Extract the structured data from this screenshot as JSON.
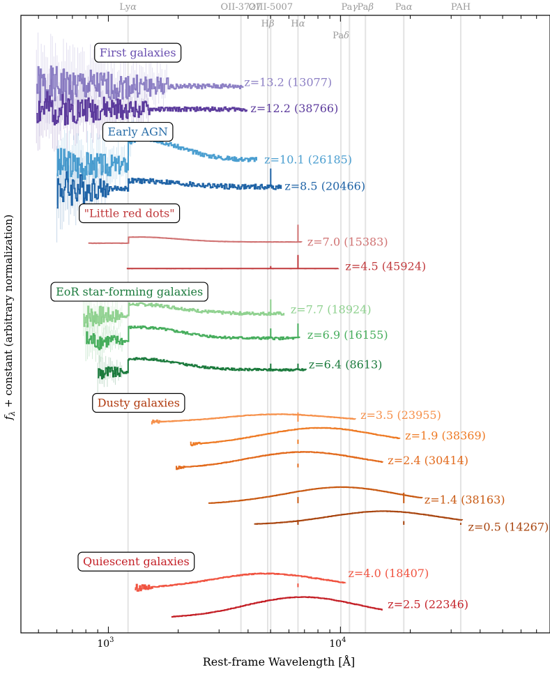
{
  "chart_data": {
    "type": "line",
    "title": "",
    "xlabel": "Rest-frame Wavelength [Å]",
    "ylabel": "fλ + constant (arbitrary normalization)",
    "xscale": "log",
    "xlim": [
      420,
      80000
    ],
    "ylim": [
      0,
      100
    ],
    "x_ticks": [
      {
        "value": 1000,
        "base": "10",
        "exp": "3"
      },
      {
        "value": 10000,
        "base": "10",
        "exp": "4"
      }
    ],
    "grid": false,
    "lines": [
      {
        "name": "Lyα",
        "base": "Ly",
        "greek": "α",
        "wavelength": 1216,
        "row": 0
      },
      {
        "name": "OII-3727",
        "base": "OII-3727",
        "greek": "",
        "wavelength": 3727,
        "row": 0
      },
      {
        "name": "OIII-5007",
        "base": "OIII-5007",
        "greek": "",
        "wavelength": 5007,
        "row": 0
      },
      {
        "name": "Paγ",
        "base": "Pa",
        "greek": "γ",
        "wavelength": 10938,
        "row": 0
      },
      {
        "name": "Paβ",
        "base": "Pa",
        "greek": "β",
        "wavelength": 12818,
        "row": 0
      },
      {
        "name": "Paα",
        "base": "Pa",
        "greek": "α",
        "wavelength": 18751,
        "row": 0
      },
      {
        "name": "PAH",
        "base": "PAH",
        "greek": "",
        "wavelength": 33000,
        "row": 0
      },
      {
        "name": "Hβ",
        "base": "H",
        "greek": "β",
        "wavelength": 4861,
        "row": 1
      },
      {
        "name": "Hα",
        "base": "H",
        "greek": "α",
        "wavelength": 6563,
        "row": 1
      },
      {
        "name": "Paδ",
        "base": "Pa",
        "greek": "δ",
        "wavelength": 10049,
        "row": 2
      }
    ],
    "groups": [
      {
        "label": "First galaxies",
        "color": "#6a4fb0",
        "x": 1250,
        "y": 94.0
      },
      {
        "label": "Early AGN",
        "color": "#2a6ea8",
        "x": 1250,
        "y": 81.2
      },
      {
        "label": "\"Little red dots\"",
        "color": "#c0393c",
        "x": 1150,
        "y": 68.0
      },
      {
        "label": "EoR star-forming galaxies",
        "color": "#1b7a3c",
        "x": 1150,
        "y": 55.3
      },
      {
        "label": "Dusty galaxies",
        "color": "#b03a0e",
        "x": 1260,
        "y": 37.3
      },
      {
        "label": "Quiescent galaxies",
        "color": "#c42027",
        "x": 1230,
        "y": 11.6
      }
    ],
    "series": [
      {
        "name": "z=13.2 (13077)",
        "color": "#8c7fc4",
        "xmin": 490,
        "xmax": 3800,
        "y": 88.5,
        "lya": 0.0,
        "emission": [],
        "noise": 3.5,
        "noisy_end": 1800,
        "seed": 1,
        "label_x": 3850,
        "label_y": 89.2
      },
      {
        "name": "z=12.2 (38766)",
        "color": "#5b3a9c",
        "xmin": 490,
        "xmax": 3950,
        "y": 84.8,
        "lya": 0.0,
        "emission": [],
        "noise": 3.0,
        "noisy_end": 1500,
        "seed": 2,
        "label_x": 4100,
        "label_y": 85.0
      },
      {
        "name": "z=10.1 (26185)",
        "color": "#4a9ed0",
        "xmin": 600,
        "xmax": 4350,
        "y": 76.6,
        "lya": 3.5,
        "emission": [],
        "noise": 3.0,
        "noisy_end": 1300,
        "seed": 3,
        "label_x": 4700,
        "label_y": 76.7
      },
      {
        "name": "z=8.5 (20466)",
        "color": "#1f63a6",
        "xmin": 600,
        "xmax": 5550,
        "y": 72.2,
        "lya": 1.0,
        "emission": [
          {
            "wl": 5007,
            "h": 3.0
          }
        ],
        "noise": 3.5,
        "noisy_end": 1000,
        "seed": 4,
        "label_x": 5750,
        "label_y": 72.4
      },
      {
        "name": "z=7.0 (15383)",
        "color": "#d07272",
        "xmin": 820,
        "xmax": 6800,
        "y": 63.3,
        "lya": 0.8,
        "emission": [
          {
            "wl": 6563,
            "h": 2.8
          }
        ],
        "noise": 0.15,
        "noisy_end": 0,
        "seed": 5,
        "label_x": 7200,
        "label_y": 63.4
      },
      {
        "name": "z=4.5 (45924)",
        "color": "#c0393c",
        "xmin": 1200,
        "xmax": 9800,
        "y": 59.0,
        "lya": 0.0,
        "emission": [
          {
            "wl": 5007,
            "h": 0.4
          },
          {
            "wl": 6563,
            "h": 2.2
          }
        ],
        "noise": 0.1,
        "noisy_end": 0,
        "seed": 6,
        "label_x": 10500,
        "label_y": 59.4
      },
      {
        "name": "z=7.7 (18924)",
        "color": "#8fd18f",
        "xmin": 780,
        "xmax": 5700,
        "y": 51.7,
        "lya": 1.5,
        "emission": [
          {
            "wl": 5007,
            "h": 2.3
          }
        ],
        "noise": 2.2,
        "noisy_end": 1150,
        "seed": 7,
        "label_x": 6100,
        "label_y": 52.4
      },
      {
        "name": "z=6.9 (16155)",
        "color": "#46ad5c",
        "xmin": 800,
        "xmax": 6650,
        "y": 47.7,
        "lya": 1.8,
        "emission": [
          {
            "wl": 5007,
            "h": 1.6
          },
          {
            "wl": 6563,
            "h": 2.4
          }
        ],
        "noise": 1.8,
        "noisy_end": 1150,
        "seed": 8,
        "label_x": 7200,
        "label_y": 48.3
      },
      {
        "name": "z=6.4 (8613)",
        "color": "#1b7a3c",
        "xmin": 900,
        "xmax": 7100,
        "y": 42.6,
        "lya": 1.8,
        "emission": [
          {
            "wl": 5007,
            "h": 1.0
          },
          {
            "wl": 6563,
            "h": 1.0
          }
        ],
        "noise": 1.5,
        "noisy_end": 1150,
        "seed": 9,
        "label_x": 7300,
        "label_y": 43.5
      },
      {
        "name": "z=3.5 (23955)",
        "color": "#f6904a",
        "xmin": 1530,
        "xmax": 11600,
        "y": 34.2,
        "lya": 0.0,
        "emission": [
          {
            "wl": 6563,
            "h": 1.5
          }
        ],
        "noise": 0.35,
        "noisy_end": 1700,
        "seed": 10,
        "label_x": 12200,
        "label_y": 35.3,
        "bump": 1.2
      },
      {
        "name": "z=1.9 (38369)",
        "color": "#ee7a24",
        "xmin": 2250,
        "xmax": 18000,
        "y": 30.6,
        "lya": 0.0,
        "emission": [
          {
            "wl": 6563,
            "h": 0.7
          }
        ],
        "noise": 0.35,
        "noisy_end": 2500,
        "seed": 11,
        "label_x": 19000,
        "label_y": 32.0,
        "bump": 2.6
      },
      {
        "name": "z=2.4 (30414)",
        "color": "#e26a1c",
        "xmin": 1950,
        "xmax": 15200,
        "y": 26.8,
        "lya": 0.0,
        "emission": [
          {
            "wl": 6563,
            "h": 0.6
          }
        ],
        "noise": 0.35,
        "noisy_end": 2150,
        "seed": 12,
        "label_x": 16000,
        "label_y": 28.0,
        "bump": 2.5
      },
      {
        "name": "z=1.4 (38163)",
        "color": "#c85912",
        "xmin": 2700,
        "xmax": 22500,
        "y": 21.0,
        "lya": 0.0,
        "emission": [
          {
            "wl": 6563,
            "h": 1.0
          },
          {
            "wl": 18751,
            "h": 1.7
          }
        ],
        "noise": 0.2,
        "noisy_end": 0,
        "seed": 13,
        "label_x": 23000,
        "label_y": 21.6,
        "bump": 2.6
      },
      {
        "name": "z=0.5 (14267)",
        "color": "#a8440e",
        "xmin": 4250,
        "xmax": 33500,
        "y": 17.5,
        "lya": 0.0,
        "emission": [
          {
            "wl": 6563,
            "h": 0.8
          },
          {
            "wl": 18751,
            "h": 0.6
          },
          {
            "wl": 33000,
            "h": 0.3
          }
        ],
        "noise": 0.2,
        "noisy_end": 0,
        "seed": 14,
        "label_x": 35500,
        "label_y": 17.2,
        "bump": 2.2
      },
      {
        "name": "z=4.0 (18407)",
        "color": "#f0523f",
        "xmin": 1300,
        "xmax": 10500,
        "y": 7.4,
        "lya": 0.0,
        "emission": [
          {
            "wl": 6563,
            "h": 0.6
          }
        ],
        "noise": 0.6,
        "noisy_end": 1550,
        "seed": 15,
        "label_x": 10800,
        "label_y": 9.7,
        "bump": 2.2
      },
      {
        "name": "z=2.5 (22346)",
        "color": "#c42027",
        "xmin": 1870,
        "xmax": 15200,
        "y": 2.7,
        "lya": 0.0,
        "emission": [],
        "noise": 0.35,
        "noisy_end": 0,
        "seed": 16,
        "label_x": 16000,
        "label_y": 4.7,
        "bump": 3.1
      }
    ]
  }
}
